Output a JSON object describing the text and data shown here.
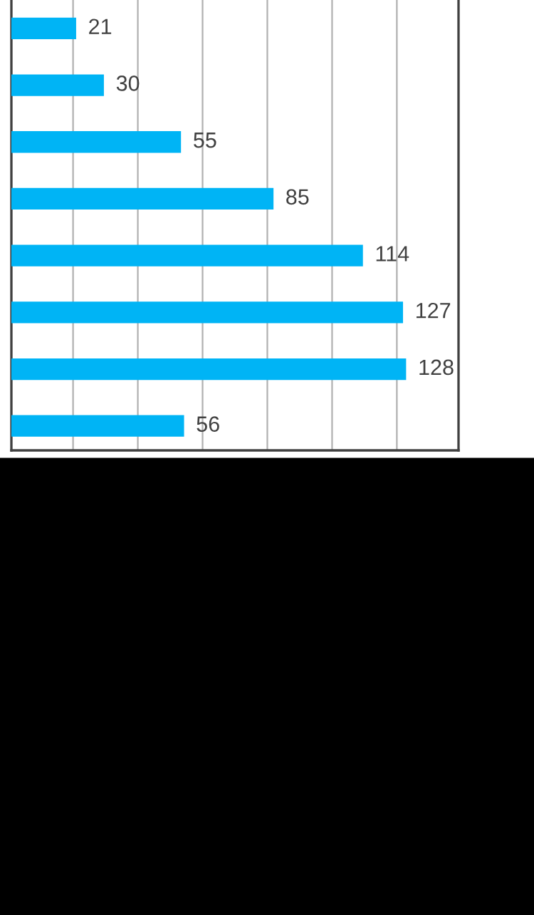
{
  "chart_data": {
    "type": "bar",
    "orientation": "horizontal",
    "categories": [
      null,
      null,
      null,
      null,
      null,
      null,
      null,
      null
    ],
    "values": [
      21,
      30,
      55,
      85,
      114,
      127,
      128,
      56
    ],
    "color": "#00b4f5",
    "data_labels": true,
    "grid": "x",
    "xlim": [
      0,
      145
    ],
    "xticks": [
      {
        "value": 20,
        "label": null
      },
      {
        "value": 41,
        "label": null
      },
      {
        "value": 62,
        "label": null
      },
      {
        "value": 83,
        "label": null
      },
      {
        "value": 104,
        "label": null
      },
      {
        "value": 125,
        "label": null
      }
    ]
  }
}
